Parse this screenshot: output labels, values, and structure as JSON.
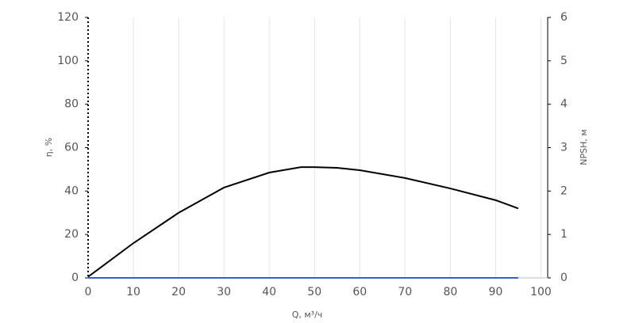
{
  "chart_data": {
    "type": "line",
    "x_label": "Q, м³/ч",
    "y_label": "η, %",
    "y2_label": "NPSH, м",
    "x": [
      0,
      10,
      20,
      30,
      40,
      47,
      50,
      55,
      60,
      70,
      80,
      90,
      95
    ],
    "series": [
      {
        "color": "#000000",
        "values": [
          0.5,
          16,
          30,
          41.6,
          48.5,
          51,
          51,
          50.7,
          49.6,
          46,
          41.2,
          35.8,
          32
        ]
      },
      {
        "color": "#3a5fcd",
        "axis": "y2",
        "values": [
          0,
          0,
          0,
          0,
          0,
          0,
          0,
          0,
          0,
          0,
          0,
          0,
          0
        ]
      }
    ],
    "xlim": [
      0,
      101.5
    ],
    "xticks": [
      0,
      10,
      20,
      30,
      40,
      50,
      60,
      70,
      80,
      90,
      100
    ],
    "ylim": [
      0,
      120
    ],
    "yticks": [
      0,
      20,
      40,
      60,
      80,
      100,
      120
    ],
    "y2lim": [
      0,
      6
    ],
    "y2ticks": [
      0,
      1,
      2,
      3,
      4,
      5,
      6
    ],
    "grid": true
  }
}
